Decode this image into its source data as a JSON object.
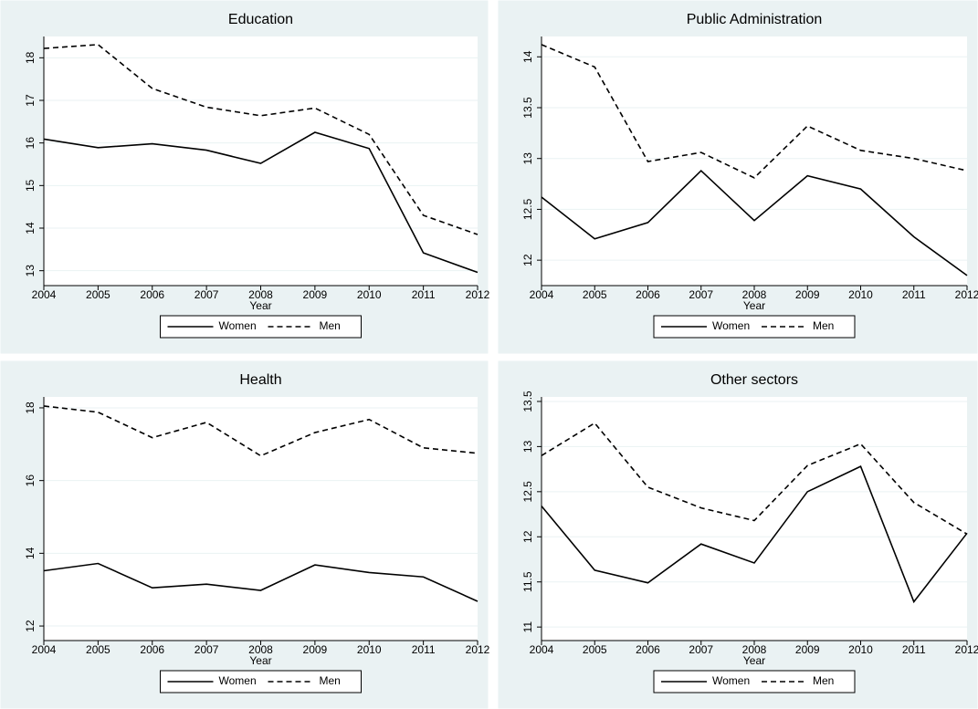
{
  "chart_data": [
    {
      "type": "line",
      "title": "Education",
      "x_label": "Year",
      "x": [
        2004,
        2005,
        2006,
        2007,
        2008,
        2009,
        2010,
        2011,
        2012
      ],
      "xlim": [
        2004,
        2012
      ],
      "xticks": [
        2004,
        2005,
        2006,
        2007,
        2008,
        2009,
        2010,
        2011,
        2012
      ],
      "ylim": [
        12.65,
        18.5
      ],
      "yticks": [
        13,
        14,
        15,
        16,
        17,
        18
      ],
      "grid": true,
      "series": [
        {
          "name": "Women",
          "color": "#000000",
          "line_style": "solid",
          "values": [
            16.09,
            15.89,
            15.98,
            15.83,
            15.52,
            16.25,
            15.87,
            13.42,
            12.96
          ]
        },
        {
          "name": "Men",
          "color": "#000000",
          "line_style": "dashed",
          "values": [
            18.22,
            18.31,
            17.28,
            16.84,
            16.64,
            16.82,
            16.2,
            14.3,
            13.85
          ]
        }
      ]
    },
    {
      "type": "line",
      "title": "Public Administration",
      "x_label": "Year",
      "x": [
        2004,
        2005,
        2006,
        2007,
        2008,
        2009,
        2010,
        2011,
        2012
      ],
      "xlim": [
        2004,
        2012
      ],
      "xticks": [
        2004,
        2005,
        2006,
        2007,
        2008,
        2009,
        2010,
        2011,
        2012
      ],
      "ylim": [
        11.75,
        14.2
      ],
      "yticks": [
        12,
        12.5,
        13,
        13.5,
        14
      ],
      "grid": true,
      "series": [
        {
          "name": "Women",
          "color": "#000000",
          "line_style": "solid",
          "values": [
            12.62,
            12.21,
            12.37,
            12.88,
            12.39,
            12.83,
            12.7,
            12.23,
            11.85
          ]
        },
        {
          "name": "Men",
          "color": "#000000",
          "line_style": "dashed",
          "values": [
            14.12,
            13.9,
            12.97,
            13.06,
            12.81,
            13.32,
            13.08,
            13.0,
            12.88
          ]
        }
      ]
    },
    {
      "type": "line",
      "title": "Health",
      "x_label": "Year",
      "x": [
        2004,
        2005,
        2006,
        2007,
        2008,
        2009,
        2010,
        2011,
        2012
      ],
      "xlim": [
        2004,
        2012
      ],
      "xticks": [
        2004,
        2005,
        2006,
        2007,
        2008,
        2009,
        2010,
        2011,
        2012
      ],
      "ylim": [
        11.6,
        18.3
      ],
      "yticks": [
        12,
        14,
        16,
        18
      ],
      "grid": true,
      "series": [
        {
          "name": "Women",
          "color": "#000000",
          "line_style": "solid",
          "values": [
            13.52,
            13.72,
            13.05,
            13.15,
            12.98,
            13.68,
            13.47,
            13.35,
            12.68
          ]
        },
        {
          "name": "Men",
          "color": "#000000",
          "line_style": "dashed",
          "values": [
            18.05,
            17.88,
            17.18,
            17.6,
            16.68,
            17.32,
            17.68,
            16.9,
            16.75
          ]
        }
      ]
    },
    {
      "type": "line",
      "title": "Other sectors",
      "x_label": "Year",
      "x": [
        2004,
        2005,
        2006,
        2007,
        2008,
        2009,
        2010,
        2011,
        2012
      ],
      "xlim": [
        2004,
        2012
      ],
      "xticks": [
        2004,
        2005,
        2006,
        2007,
        2008,
        2009,
        2010,
        2011,
        2012
      ],
      "ylim": [
        10.85,
        13.55
      ],
      "yticks": [
        11,
        11.5,
        12,
        12.5,
        13,
        13.5
      ],
      "grid": true,
      "series": [
        {
          "name": "Women",
          "color": "#000000",
          "line_style": "solid",
          "values": [
            12.34,
            11.63,
            11.49,
            11.92,
            11.71,
            12.5,
            12.78,
            11.28,
            12.04
          ]
        },
        {
          "name": "Men",
          "color": "#000000",
          "line_style": "dashed",
          "values": [
            12.9,
            13.26,
            12.55,
            12.32,
            12.18,
            12.79,
            13.03,
            12.38,
            12.03
          ]
        }
      ]
    }
  ]
}
